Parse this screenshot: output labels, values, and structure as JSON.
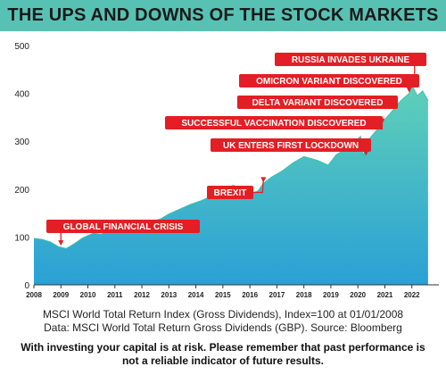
{
  "title": "THE UPS AND DOWNS OF THE STOCK MARKETS",
  "caption_line1": "MSCI World Total Return Index (Gross Dividends), Index=100 at 01/01/2008",
  "caption_line2": "Data: MSCI World Total Return Gross Dividends (GBP). Source: Bloomberg",
  "disclaimer": "With investing your capital is at risk. Please remember that past performance is not a reliable indicator of future results.",
  "colors": {
    "title_bar": "#57c2b4",
    "area_top": "#5fd0b8",
    "area_bottom": "#2aa0d6",
    "label_bg": "#e31e24",
    "label_text": "#ffffff"
  },
  "chart_data": {
    "type": "area",
    "xlim": [
      2008,
      2023
    ],
    "ylim": [
      0,
      500
    ],
    "x_ticks": [
      2008,
      2009,
      2010,
      2011,
      2012,
      2013,
      2014,
      2015,
      2016,
      2017,
      2018,
      2019,
      2020,
      2021,
      2022
    ],
    "y_ticks": [
      0,
      100,
      200,
      300,
      400,
      500
    ],
    "grid": false,
    "x": [
      2008.0,
      2008.3,
      2008.6,
      2008.9,
      2009.2,
      2009.5,
      2009.8,
      2010.2,
      2010.5,
      2010.8,
      2011.2,
      2011.6,
      2011.9,
      2012.3,
      2012.7,
      2013.0,
      2013.4,
      2013.8,
      2014.2,
      2014.6,
      2015.0,
      2015.4,
      2015.7,
      2016.0,
      2016.3,
      2016.5,
      2016.8,
      2017.2,
      2017.6,
      2018.0,
      2018.5,
      2018.9,
      2019.2,
      2019.6,
      2019.9,
      2020.1,
      2020.2,
      2020.3,
      2020.5,
      2020.8,
      2021.0,
      2021.3,
      2021.6,
      2021.9,
      2022.0,
      2022.2,
      2022.4,
      2022.6
    ],
    "y": [
      97,
      95,
      90,
      80,
      76,
      86,
      98,
      108,
      106,
      118,
      125,
      112,
      120,
      130,
      138,
      148,
      158,
      168,
      176,
      186,
      200,
      208,
      196,
      190,
      196,
      212,
      225,
      238,
      255,
      268,
      260,
      250,
      272,
      285,
      300,
      310,
      268,
      295,
      310,
      330,
      345,
      365,
      385,
      400,
      418,
      395,
      405,
      385
    ],
    "annotations": [
      {
        "label": "GLOBAL FINANCIAL CRISIS",
        "x": 2009.0,
        "y": 80
      },
      {
        "label": "BREXIT",
        "x": 2016.5,
        "y": 212
      },
      {
        "label": "UK ENTERS FIRST LOCKDOWN",
        "x": 2020.3,
        "y": 268
      },
      {
        "label": "SUCCESSFUL VACCINATION DISCOVERED",
        "x": 2020.9,
        "y": 335
      },
      {
        "label": "DELTA VARIANT DISCOVERED",
        "x": 2021.4,
        "y": 370
      },
      {
        "label": "OMICRON VARIANT DISCOVERED",
        "x": 2021.9,
        "y": 400
      },
      {
        "label": "RUSSIA INVADES UKRAINE",
        "x": 2022.1,
        "y": 410
      }
    ]
  }
}
